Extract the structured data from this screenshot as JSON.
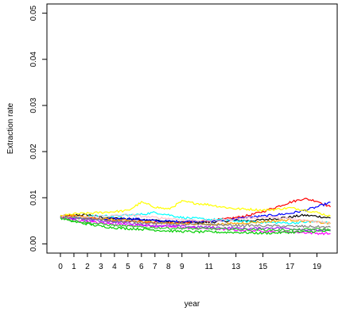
{
  "chart_data": {
    "type": "line",
    "title": "",
    "xlabel": "year",
    "ylabel": "Extraction rate",
    "xlim": [
      -1,
      20.5
    ],
    "ylim": [
      -0.002,
      0.052
    ],
    "x_ticks": [
      0,
      1,
      2,
      3,
      4,
      5,
      6,
      7,
      8,
      9,
      11,
      13,
      15,
      17,
      19
    ],
    "x_tick_labels": [
      "0",
      "1",
      "2",
      "3",
      "4",
      "5",
      "6",
      "7",
      "8",
      "9",
      "11",
      "13",
      "15",
      "17",
      "19"
    ],
    "y_ticks": [
      0,
      0.01,
      0.02,
      0.03,
      0.04,
      0.05
    ],
    "y_tick_labels": [
      "0.00",
      "0.01",
      "0.02",
      "0.03",
      "0.04",
      "0.05"
    ],
    "grid": false,
    "legend": "none",
    "x": [
      0,
      1,
      2,
      3,
      4,
      5,
      6,
      7,
      8,
      9,
      10,
      11,
      12,
      13,
      14,
      15,
      16,
      17,
      18,
      19,
      20
    ],
    "series": [
      {
        "color": "#000000",
        "values": [
          0.0059,
          0.0062,
          0.0063,
          0.0058,
          0.0055,
          0.0054,
          0.0053,
          0.0051,
          0.0048,
          0.0047,
          0.0046,
          0.0047,
          0.0049,
          0.0051,
          0.005,
          0.0052,
          0.0055,
          0.0058,
          0.0062,
          0.006,
          0.0056
        ]
      },
      {
        "color": "#ff0000",
        "values": [
          0.0058,
          0.006,
          0.0056,
          0.0053,
          0.005,
          0.0049,
          0.0048,
          0.0047,
          0.0045,
          0.0046,
          0.0048,
          0.005,
          0.0053,
          0.0057,
          0.0062,
          0.007,
          0.008,
          0.009,
          0.0098,
          0.0093,
          0.008
        ]
      },
      {
        "color": "#0000ff",
        "values": [
          0.0058,
          0.0056,
          0.0055,
          0.0053,
          0.0054,
          0.0055,
          0.0053,
          0.005,
          0.0049,
          0.0048,
          0.005,
          0.0049,
          0.0051,
          0.0054,
          0.0058,
          0.006,
          0.0063,
          0.0066,
          0.0072,
          0.008,
          0.009
        ]
      },
      {
        "color": "#ffff00",
        "values": [
          0.006,
          0.0065,
          0.0066,
          0.0068,
          0.007,
          0.0072,
          0.009,
          0.008,
          0.0075,
          0.0092,
          0.0088,
          0.0085,
          0.008,
          0.0076,
          0.0075,
          0.0073,
          0.0075,
          0.0078,
          0.0074,
          0.0068,
          0.006
        ]
      },
      {
        "color": "#00ffff",
        "values": [
          0.0058,
          0.0057,
          0.0059,
          0.0061,
          0.006,
          0.0062,
          0.0064,
          0.0068,
          0.0063,
          0.0057,
          0.0055,
          0.0053,
          0.0052,
          0.005,
          0.0048,
          0.0047,
          0.0046,
          0.0045,
          0.0047,
          0.0048,
          0.0045
        ]
      },
      {
        "color": "#ff00ff",
        "values": [
          0.0057,
          0.0052,
          0.0048,
          0.0045,
          0.0043,
          0.0042,
          0.004,
          0.0038,
          0.0037,
          0.0035,
          0.0034,
          0.0033,
          0.0032,
          0.003,
          0.0029,
          0.0028,
          0.0027,
          0.0026,
          0.0025,
          0.0023,
          0.0022
        ]
      },
      {
        "color": "#00cd00",
        "values": [
          0.0056,
          0.0048,
          0.0043,
          0.0038,
          0.0035,
          0.0033,
          0.0032,
          0.003,
          0.0028,
          0.0027,
          0.0026,
          0.0026,
          0.0025,
          0.0025,
          0.0024,
          0.0023,
          0.0024,
          0.0025,
          0.0026,
          0.0027,
          0.0028
        ]
      },
      {
        "color": "#ffa500",
        "values": [
          0.006,
          0.0061,
          0.0058,
          0.0055,
          0.0052,
          0.005,
          0.0048,
          0.0046,
          0.0045,
          0.0044,
          0.0043,
          0.0042,
          0.0043,
          0.0044,
          0.0046,
          0.0048,
          0.005,
          0.0052,
          0.005,
          0.0047,
          0.0044
        ]
      },
      {
        "color": "#a020f0",
        "values": [
          0.0058,
          0.0055,
          0.0052,
          0.005,
          0.0047,
          0.0045,
          0.0042,
          0.004,
          0.0039,
          0.0038,
          0.0037,
          0.0036,
          0.0035,
          0.0034,
          0.0033,
          0.0034,
          0.0035,
          0.0033,
          0.0031,
          0.003,
          0.0029
        ]
      },
      {
        "color": "#ffc0cb",
        "values": [
          0.0059,
          0.0057,
          0.0058,
          0.006,
          0.0061,
          0.0063,
          0.006,
          0.0057,
          0.0055,
          0.0053,
          0.0051,
          0.005,
          0.0052,
          0.0054,
          0.0056,
          0.0058,
          0.0057,
          0.0054,
          0.0051,
          0.0048,
          0.0046
        ]
      },
      {
        "color": "#32cd32",
        "values": [
          0.0057,
          0.005,
          0.0046,
          0.0043,
          0.004,
          0.0038,
          0.0036,
          0.0035,
          0.0034,
          0.0034,
          0.0033,
          0.0033,
          0.0032,
          0.0032,
          0.0031,
          0.0031,
          0.003,
          0.003,
          0.0031,
          0.0032,
          0.0031
        ]
      },
      {
        "color": "#808080",
        "values": [
          0.0058,
          0.0056,
          0.0054,
          0.0052,
          0.005,
          0.0048,
          0.0046,
          0.0045,
          0.0044,
          0.0043,
          0.0042,
          0.0042,
          0.0041,
          0.004,
          0.004,
          0.0039,
          0.0039,
          0.0038,
          0.0038,
          0.0037,
          0.0036
        ]
      }
    ]
  }
}
